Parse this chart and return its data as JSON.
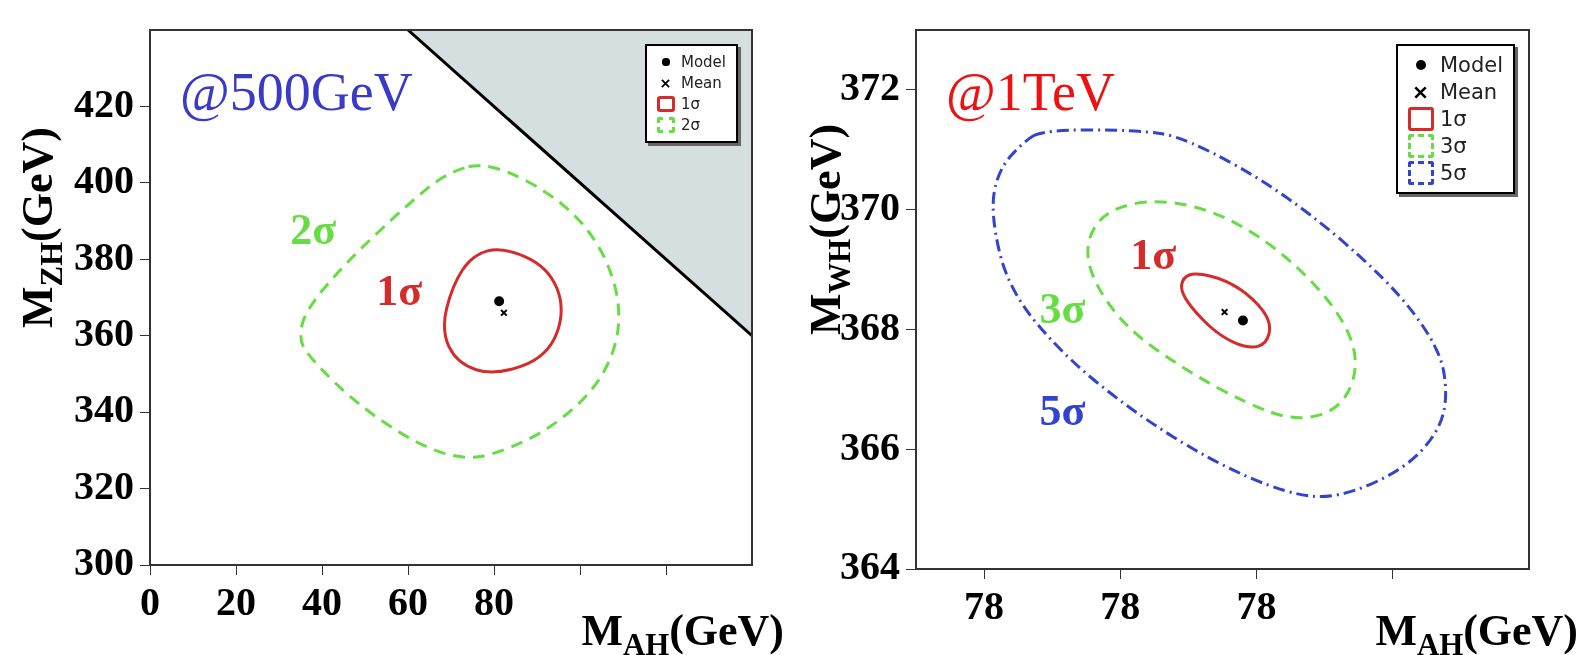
{
  "chart_data": [
    {
      "type": "scatter",
      "title": "@500GeV",
      "xlabel": "M$_{AH}$(GeV)",
      "ylabel": "M$_{ZH}$(GeV)",
      "xlim": [
        0,
        140
      ],
      "ylim": [
        300,
        440
      ],
      "xticks": [
        0,
        20,
        40,
        60,
        80,
        {
          "value": 100,
          "label": null
        },
        {
          "value": 120,
          "label": null
        }
      ],
      "yticks": [
        300,
        320,
        340,
        360,
        380,
        400,
        420
      ],
      "legend": "top right",
      "annotations": [
        "1σ",
        "2σ"
      ],
      "series": [
        {
          "name": "Model",
          "marker": "circle",
          "color": "#000000",
          "x": [
            81.2
          ],
          "values": [
            369
          ]
        },
        {
          "name": "Mean",
          "marker": "cross",
          "color": "#000000",
          "x": [
            82.3
          ],
          "values": [
            366
          ]
        },
        {
          "type": "area",
          "color": "#d5dfe0",
          "x": [
            60,
            140
          ],
          "values": [
            440,
            360
          ]
        }
      ]
    },
    {
      "type": "scatter",
      "title": "@1TeV",
      "xlabel": "M$_{AH}$(GeV)",
      "ylabel": "M$_{WH}$(GeV)",
      "xlim": [
        77.5,
        78.4
      ],
      "ylim": [
        364,
        373
      ],
      "xticks": [
        {
          "value": 77.6,
          "label": "78"
        },
        {
          "value": 77.8,
          "label": "78"
        },
        {
          "value": 78.0,
          "label": "78"
        },
        {
          "value": 78.2,
          "label": null
        }
      ],
      "yticks": [
        364,
        366,
        368,
        370,
        372
      ],
      "legend": "top right",
      "annotations": [
        "1σ",
        "3σ",
        "5σ"
      ],
      "series": [
        {
          "name": "Model",
          "marker": "circle",
          "color": "#000000",
          "x": [
            77.98
          ],
          "values": [
            368.15
          ]
        },
        {
          "name": "Mean",
          "marker": "cross",
          "color": "#000000",
          "x": [
            77.953
          ],
          "values": [
            368.29
          ]
        }
      ]
    }
  ]
}
